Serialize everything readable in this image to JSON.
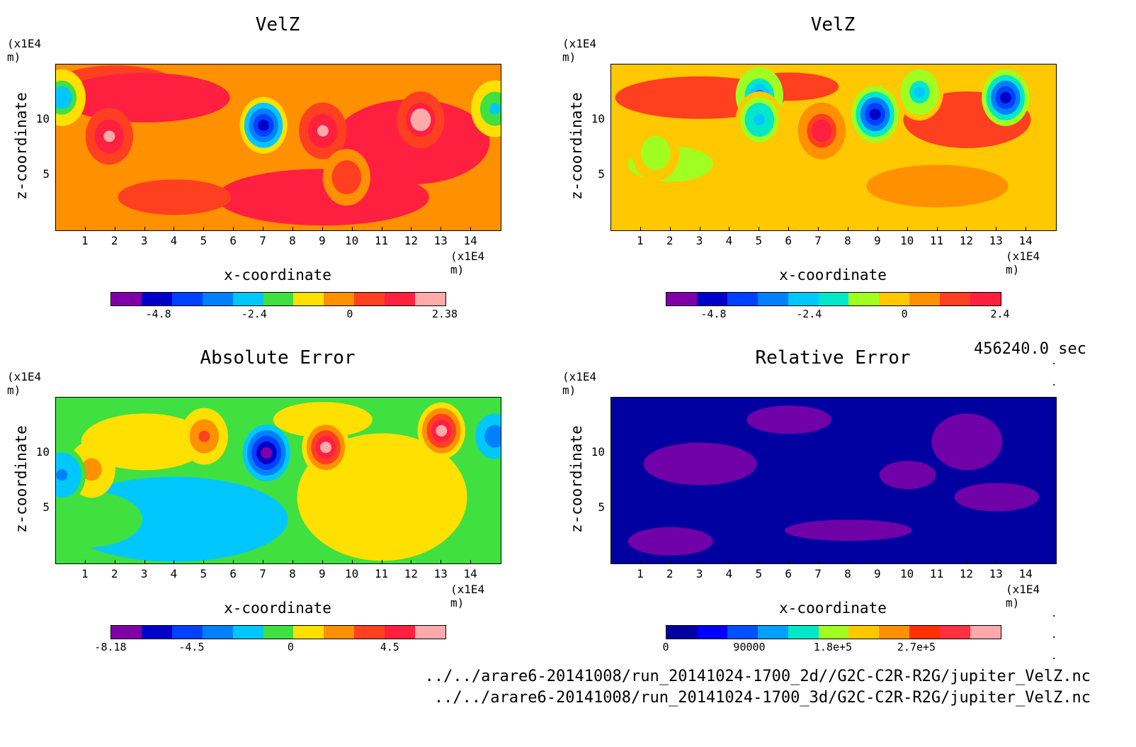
{
  "timestamp": "456240.0 sec",
  "files": [
    "../../arare6-20141008/run_20141024-1700_2d//G2C-C2R-R2G/jupiter_VelZ.nc",
    "../../arare6-20141008/run_20141024-1700_3d/G2C-C2R-R2G/jupiter_VelZ.nc"
  ],
  "chart_data": [
    {
      "type": "heatmap",
      "title": "VelZ",
      "xlabel": "x-coordinate",
      "ylabel": "z-coordinate",
      "x_unit": "(x1E4 m)",
      "y_unit": "(x1E4 m)",
      "xlim": [
        0,
        15
      ],
      "ylim": [
        0,
        15
      ],
      "xticks": [
        "1",
        "2",
        "3",
        "4",
        "5",
        "6",
        "7",
        "8",
        "9",
        "10",
        "11",
        "12",
        "13",
        "14"
      ],
      "yticks": [
        "5",
        "10"
      ],
      "colorbar": {
        "colors": [
          "#8000a8",
          "#0000c8",
          "#0040ff",
          "#0080ff",
          "#00c8ff",
          "#40e040",
          "#ffe000",
          "#ff9000",
          "#ff4020",
          "#ff2040",
          "#ffaaaa"
        ],
        "tick_labels": [
          "-4.8",
          "-2.4",
          "0",
          "2.38"
        ],
        "range": [
          -6.0,
          2.38
        ]
      },
      "blobs": [
        {
          "x": 7.0,
          "y": 9.5,
          "value": -5.2
        },
        {
          "x": 0.2,
          "y": 12.0,
          "value": -2.8
        },
        {
          "x": 14.8,
          "y": 11.0,
          "value": -2.6
        },
        {
          "x": 12.3,
          "y": 10.0,
          "value": 2.38
        },
        {
          "x": 1.8,
          "y": 8.5,
          "value": 2.0
        },
        {
          "x": 9.0,
          "y": 9.0,
          "value": 1.9
        },
        {
          "x": 9.8,
          "y": 4.8,
          "value": 0.5
        }
      ]
    },
    {
      "type": "heatmap",
      "title": "VelZ",
      "xlabel": "x-coordinate",
      "ylabel": "z-coordinate",
      "x_unit": "(x1E4 m)",
      "y_unit": "(x1E4 m)",
      "xlim": [
        0,
        15
      ],
      "ylim": [
        0,
        15
      ],
      "xticks": [
        "1",
        "2",
        "3",
        "4",
        "5",
        "6",
        "7",
        "8",
        "9",
        "10",
        "11",
        "12",
        "13",
        "14"
      ],
      "yticks": [
        "5",
        "10"
      ],
      "colorbar": {
        "colors": [
          "#8000a8",
          "#0000c8",
          "#0040ff",
          "#0080ff",
          "#00c8ff",
          "#00e8c8",
          "#a0ff20",
          "#ffc800",
          "#ff9000",
          "#ff4020",
          "#ff2040"
        ],
        "tick_labels": [
          "-4.8",
          "-2.4",
          "0",
          "2.4"
        ],
        "range": [
          -6.0,
          2.4
        ]
      },
      "blobs": [
        {
          "x": 8.9,
          "y": 10.5,
          "value": -5.0
        },
        {
          "x": 13.3,
          "y": 12.0,
          "value": -5.0
        },
        {
          "x": 5.0,
          "y": 12.2,
          "value": -3.2
        },
        {
          "x": 5.0,
          "y": 10.0,
          "value": -2.4
        },
        {
          "x": 10.4,
          "y": 12.5,
          "value": -2.2
        },
        {
          "x": 7.1,
          "y": 9.0,
          "value": 2.3
        },
        {
          "x": 1.5,
          "y": 7.0,
          "value": -1.0
        }
      ]
    },
    {
      "type": "heatmap",
      "title": "Absolute Error",
      "xlabel": "x-coordinate",
      "ylabel": "z-coordinate",
      "x_unit": "(x1E4 m)",
      "y_unit": "(x1E4 m)",
      "xlim": [
        0,
        15
      ],
      "ylim": [
        0,
        15
      ],
      "xticks": [
        "1",
        "2",
        "3",
        "4",
        "5",
        "6",
        "7",
        "8",
        "9",
        "10",
        "11",
        "12",
        "13",
        "14"
      ],
      "yticks": [
        "5",
        "10"
      ],
      "colorbar": {
        "colors": [
          "#8000a8",
          "#0000c8",
          "#0040ff",
          "#0080ff",
          "#00c8ff",
          "#40e040",
          "#ffe000",
          "#ff9000",
          "#ff4020",
          "#ff2040",
          "#ffaaaa"
        ],
        "tick_labels": [
          "-8.18",
          "-4.5",
          "0",
          "4.5"
        ],
        "range": [
          -8.18,
          7.0
        ]
      },
      "blobs": [
        {
          "x": 7.1,
          "y": 10.0,
          "value": -7.5
        },
        {
          "x": 9.1,
          "y": 10.5,
          "value": 6.0
        },
        {
          "x": 13.0,
          "y": 12.0,
          "value": 6.5
        },
        {
          "x": 5.0,
          "y": 11.5,
          "value": 3.5
        },
        {
          "x": 1.2,
          "y": 8.5,
          "value": 2.5
        },
        {
          "x": 14.8,
          "y": 11.5,
          "value": -3.5
        },
        {
          "x": 0.2,
          "y": 8.0,
          "value": -2.8
        }
      ]
    },
    {
      "type": "heatmap",
      "title": "Relative Error",
      "xlabel": "x-coordinate",
      "ylabel": "z-coordinate",
      "x_unit": "(x1E4 m)",
      "y_unit": "(x1E4 m)",
      "xlim": [
        0,
        15
      ],
      "ylim": [
        0,
        15
      ],
      "xticks": [
        "1",
        "2",
        "3",
        "4",
        "5",
        "6",
        "7",
        "8",
        "9",
        "10",
        "11",
        "12",
        "13",
        "14"
      ],
      "yticks": [
        "5",
        "10"
      ],
      "colorbar": {
        "colors": [
          "#0000a0",
          "#0000ff",
          "#0050ff",
          "#00a0ff",
          "#00e8c8",
          "#a0ff20",
          "#ffc800",
          "#ff9000",
          "#ff3000",
          "#ff3040",
          "#ffaaaa"
        ],
        "tick_labels": [
          "0",
          "90000",
          "1.8e+5",
          "2.7e+5"
        ],
        "range": [
          0,
          360000
        ]
      },
      "blobs": []
    }
  ]
}
